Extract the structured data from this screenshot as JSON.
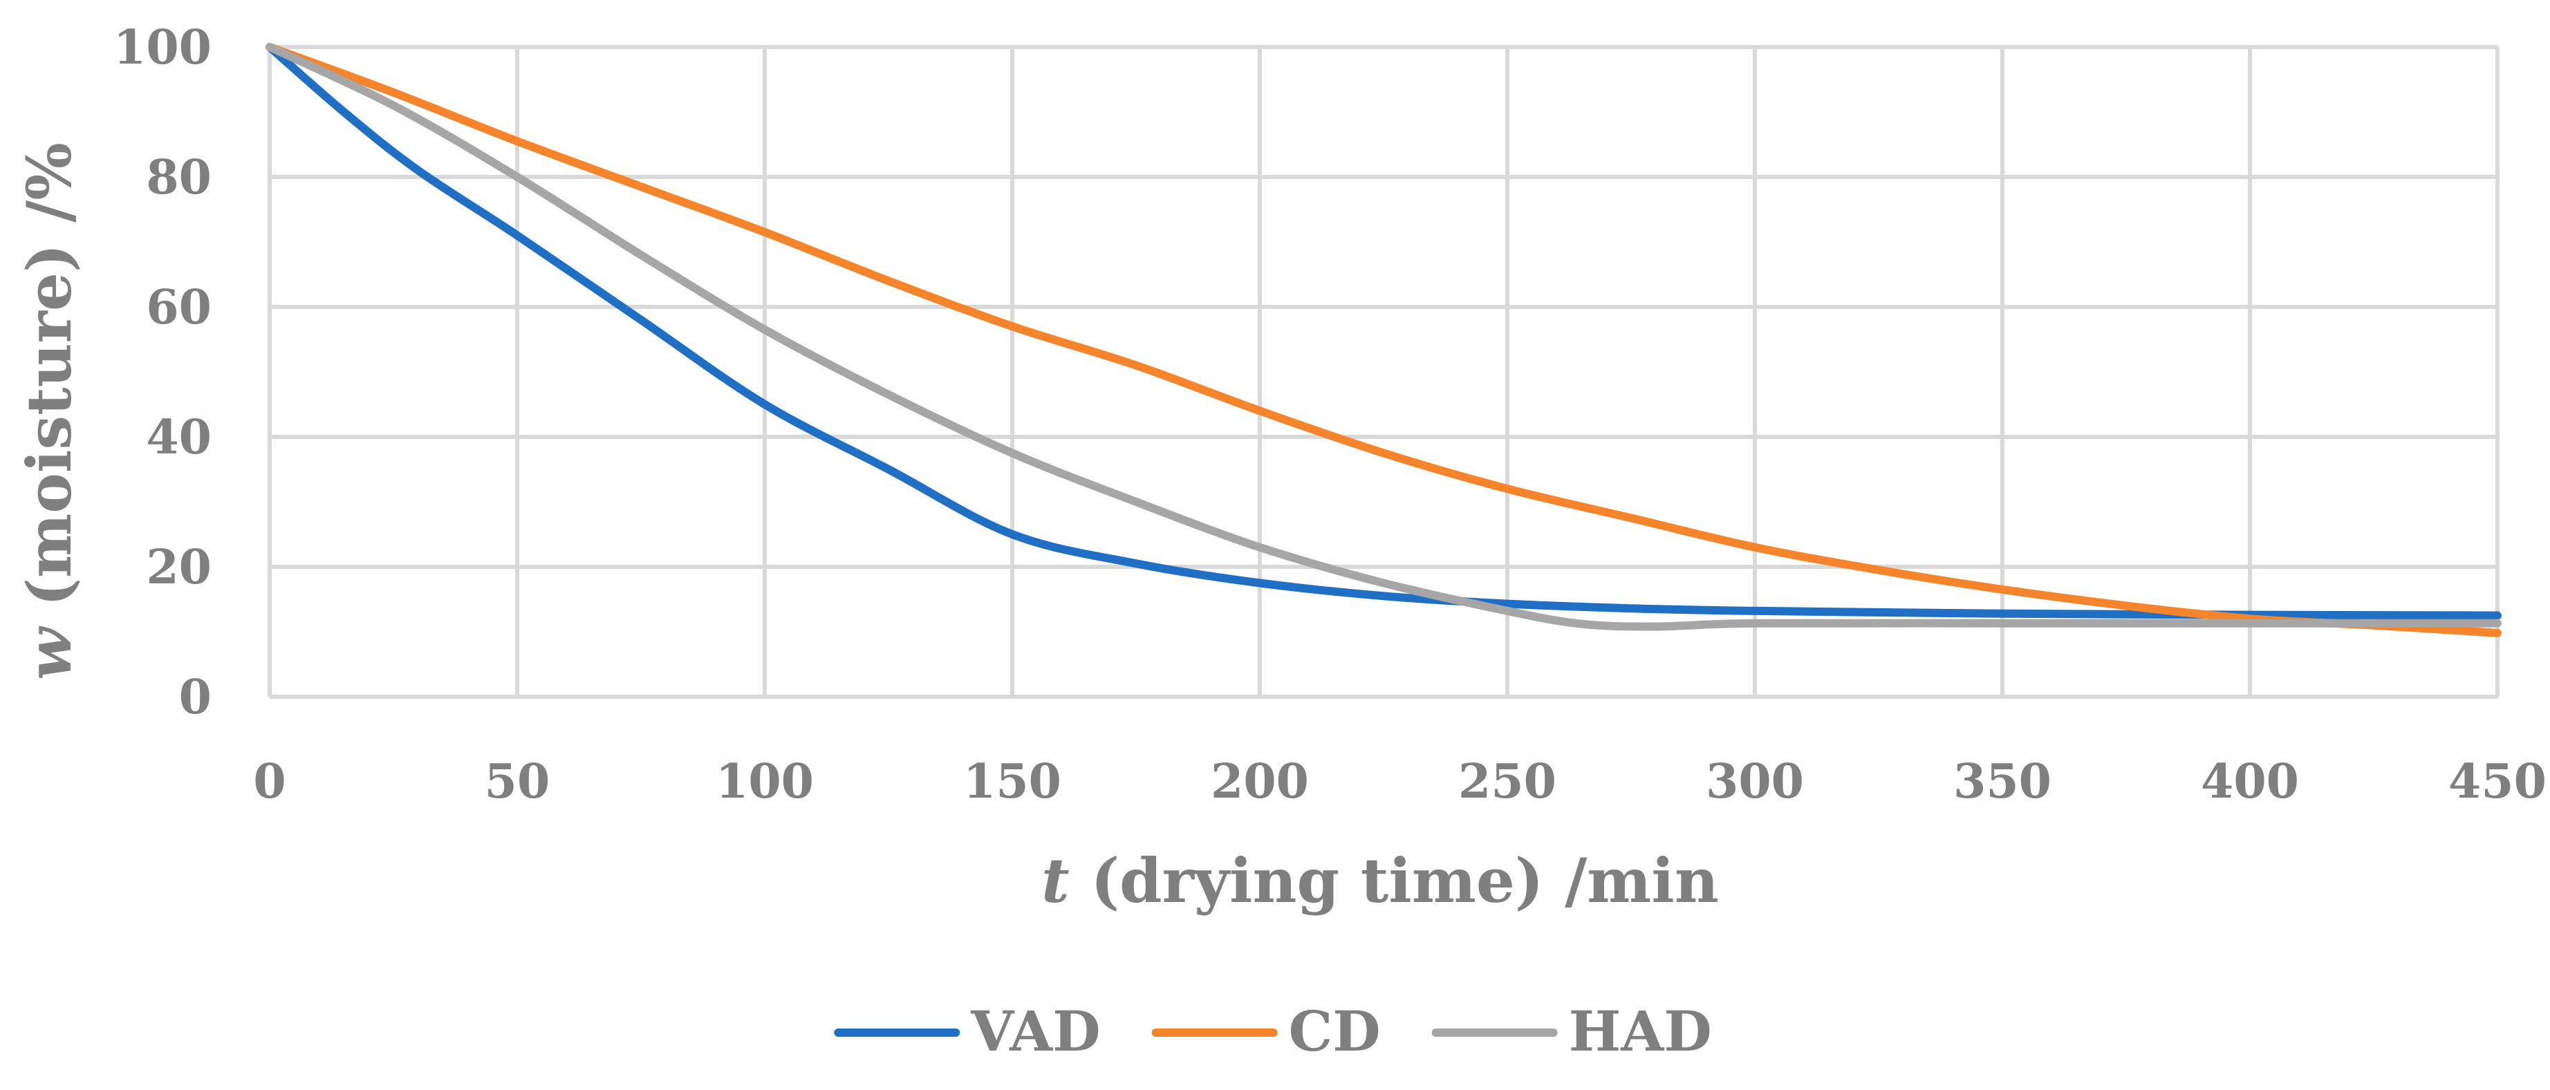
{
  "chart_data": {
    "type": "line",
    "title": "",
    "xlabel_var": "t",
    "xlabel_text": " (drying time) /min",
    "ylabel_var": "w",
    "ylabel_text": " (moisture) /%",
    "xlim": [
      0,
      450
    ],
    "ylim": [
      0,
      100
    ],
    "xticks": [
      0,
      50,
      100,
      150,
      200,
      250,
      300,
      350,
      400,
      450
    ],
    "yticks": [
      0,
      20,
      40,
      60,
      80,
      100
    ],
    "grid": true,
    "legend_position": "bottom",
    "series": [
      {
        "name": "VAD",
        "color": "#1f6fc5",
        "x": [
          0,
          15,
          30,
          50,
          75,
          100,
          125,
          150,
          175,
          200,
          225,
          250,
          275,
          300,
          350,
          400,
          450
        ],
        "y": [
          100,
          90,
          81,
          71,
          58,
          45,
          35,
          25,
          20.5,
          17.5,
          15.5,
          14.3,
          13.6,
          13.2,
          12.8,
          12.6,
          12.5
        ]
      },
      {
        "name": "CD",
        "color": "#f5842a",
        "x": [
          0,
          25,
          50,
          75,
          100,
          125,
          150,
          175,
          200,
          225,
          250,
          275,
          300,
          325,
          350,
          375,
          400,
          425,
          450
        ],
        "y": [
          100,
          93,
          85.5,
          78.5,
          71.5,
          64,
          57,
          51,
          44,
          37.5,
          32,
          27.5,
          23,
          19.5,
          16.5,
          14,
          12,
          11,
          9.8
        ]
      },
      {
        "name": "HAD",
        "color": "#a6a6a6",
        "x": [
          0,
          25,
          50,
          75,
          100,
          125,
          150,
          175,
          200,
          225,
          250,
          265,
          280,
          300,
          350,
          400,
          450
        ],
        "y": [
          100,
          91,
          80,
          68,
          56.5,
          46.5,
          37.5,
          30,
          23,
          17.5,
          13.2,
          11.2,
          10.8,
          11.3,
          11.3,
          11.3,
          11.3
        ]
      }
    ]
  }
}
